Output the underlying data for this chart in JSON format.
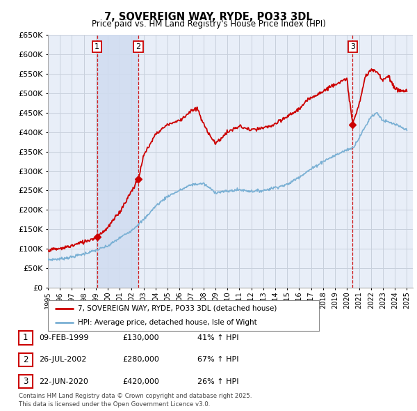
{
  "title": "7, SOVEREIGN WAY, RYDE, PO33 3DL",
  "subtitle": "Price paid vs. HM Land Registry's House Price Index (HPI)",
  "ylim": [
    0,
    650000
  ],
  "yticks": [
    0,
    50000,
    100000,
    150000,
    200000,
    250000,
    300000,
    350000,
    400000,
    450000,
    500000,
    550000,
    600000,
    650000
  ],
  "xlim_start": 1995.0,
  "xlim_end": 2025.5,
  "sale_color": "#cc0000",
  "hpi_color": "#7ab0d4",
  "background_color": "#ffffff",
  "grid_color": "#c8d0dc",
  "plot_bg_color": "#e8eef8",
  "shade_color": "#d0dcf0",
  "sales": [
    {
      "label": "1",
      "date": 1999.1,
      "price": 130000
    },
    {
      "label": "2",
      "date": 2002.56,
      "price": 280000
    },
    {
      "label": "3",
      "date": 2020.47,
      "price": 420000
    }
  ],
  "sale_vline_color": "#cc0000",
  "legend_sale_label": "7, SOVEREIGN WAY, RYDE, PO33 3DL (detached house)",
  "legend_hpi_label": "HPI: Average price, detached house, Isle of Wight",
  "table_rows": [
    {
      "num": "1",
      "date": "09-FEB-1999",
      "price": "£130,000",
      "change": "41% ↑ HPI"
    },
    {
      "num": "2",
      "date": "26-JUL-2002",
      "price": "£280,000",
      "change": "67% ↑ HPI"
    },
    {
      "num": "3",
      "date": "22-JUN-2020",
      "price": "£420,000",
      "change": "26% ↑ HPI"
    }
  ],
  "footer": "Contains HM Land Registry data © Crown copyright and database right 2025.\nThis data is licensed under the Open Government Licence v3.0.",
  "hpi_anchors_x": [
    1995,
    1996,
    1997,
    1998,
    1999,
    2000,
    2001,
    2002,
    2003,
    2004,
    2005,
    2006,
    2007,
    2008,
    2009,
    2010,
    2011,
    2012,
    2013,
    2014,
    2015,
    2016,
    2017,
    2018,
    2019,
    2020,
    2020.5,
    2021,
    2022,
    2022.5,
    2023,
    2024,
    2025
  ],
  "hpi_anchors_y": [
    72000,
    74000,
    79000,
    87000,
    96000,
    107000,
    128000,
    148000,
    175000,
    210000,
    235000,
    250000,
    265000,
    268000,
    245000,
    248000,
    252000,
    248000,
    250000,
    258000,
    265000,
    285000,
    305000,
    325000,
    340000,
    355000,
    360000,
    385000,
    440000,
    450000,
    430000,
    420000,
    405000
  ],
  "sale_anchors_x": [
    1995,
    1996,
    1997,
    1998,
    1999.1,
    2000,
    2001,
    2002.56,
    2003,
    2004,
    2005,
    2006,
    2007,
    2007.5,
    2008,
    2009,
    2010,
    2011,
    2012,
    2013,
    2014,
    2015,
    2016,
    2017,
    2018,
    2019,
    2020,
    2020.47,
    2021,
    2021.5,
    2022,
    2022.5,
    2023,
    2023.5,
    2024,
    2025
  ],
  "sale_anchors_y": [
    97000,
    100000,
    108000,
    118000,
    130000,
    155000,
    195000,
    280000,
    340000,
    395000,
    420000,
    430000,
    455000,
    460000,
    420000,
    370000,
    400000,
    415000,
    405000,
    410000,
    420000,
    440000,
    460000,
    490000,
    505000,
    525000,
    535000,
    420000,
    470000,
    540000,
    560000,
    555000,
    535000,
    545000,
    510000,
    505000
  ]
}
